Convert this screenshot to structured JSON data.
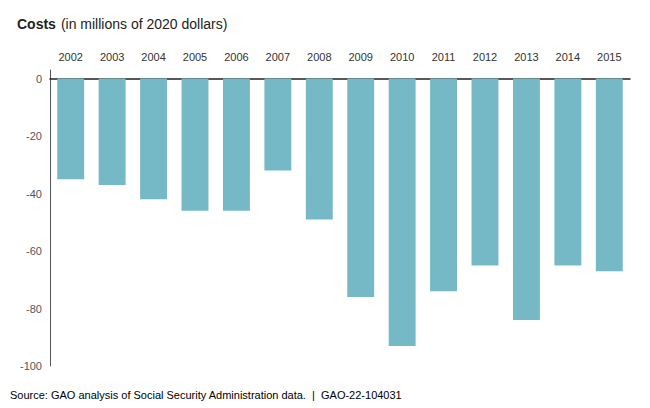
{
  "chart_data": {
    "type": "bar",
    "title": "Costs",
    "subtitle": "(in millions of 2020 dollars)",
    "annotations": [
      "Source: GAO analysis of Social Security Administration data.  |  GAO-22-104031"
    ],
    "categories": [
      "2002",
      "2003",
      "2004",
      "2005",
      "2006",
      "2007",
      "2008",
      "2009",
      "2010",
      "2011",
      "2012",
      "2013",
      "2014",
      "2015"
    ],
    "values": [
      -35,
      -37,
      -42,
      -46,
      -46,
      -32,
      -49,
      -76,
      -93,
      -74,
      -65,
      -84,
      -65,
      -67
    ],
    "color": "#74b9c5",
    "ylim": [
      -100,
      3
    ],
    "yticks": [
      0,
      -20,
      -40,
      -60,
      -80,
      -100
    ],
    "grid": false
  }
}
